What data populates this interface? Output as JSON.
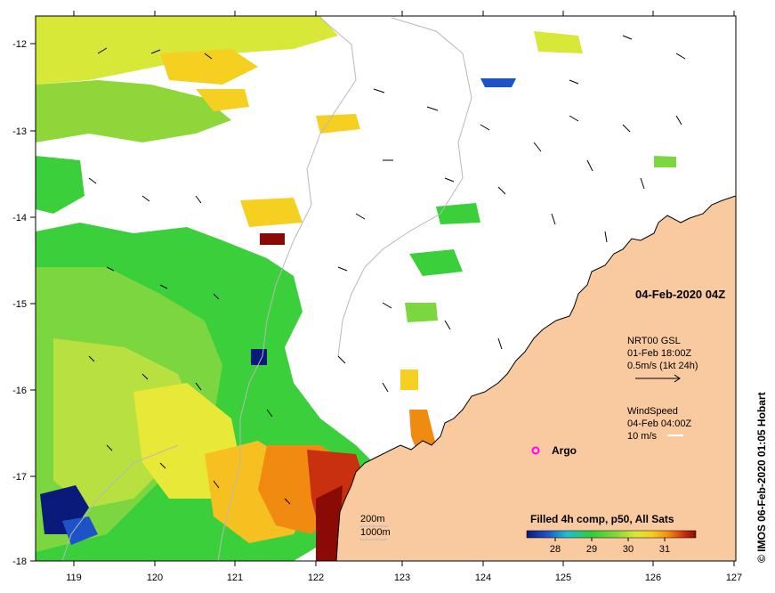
{
  "map": {
    "x_ticks": [
      "119",
      "120",
      "121",
      "122",
      "123",
      "124",
      "125",
      "126",
      "127"
    ],
    "y_ticks": [
      "-12",
      "-13",
      "-14",
      "-15",
      "-16",
      "-17",
      "-18"
    ],
    "stamp": "04-Feb-2020 04Z",
    "current_title": "NRT00 GSL",
    "current_time": "01-Feb 18:00Z",
    "current_scale": "0.5m/s (1kt 24h)",
    "wind_title": "WindSpeed",
    "wind_time": "04-Feb 04:00Z",
    "wind_scale": "10 m/s",
    "argo_label": "Argo",
    "contour_200": "200m",
    "contour_1000": "1000m",
    "colorbar_title": "Filled 4h comp, p50, All Sats",
    "colorbar_ticks": [
      "28",
      "29",
      "30",
      "31"
    ],
    "credit": "© IMOS 06-Feb-2020 01:05 Hobart"
  },
  "colors": {
    "land": "#f9c9a0",
    "coast": "#000000",
    "bathymetry": "#b8b8b8",
    "argo_marker": "#ff00ff",
    "sst_scale": [
      "#0a1a7a",
      "#1e52c8",
      "#1ec0d0",
      "#2ecc3a",
      "#7ed63a",
      "#d6e83a",
      "#f5d020",
      "#f08a10",
      "#c83010",
      "#8a0a06"
    ]
  }
}
